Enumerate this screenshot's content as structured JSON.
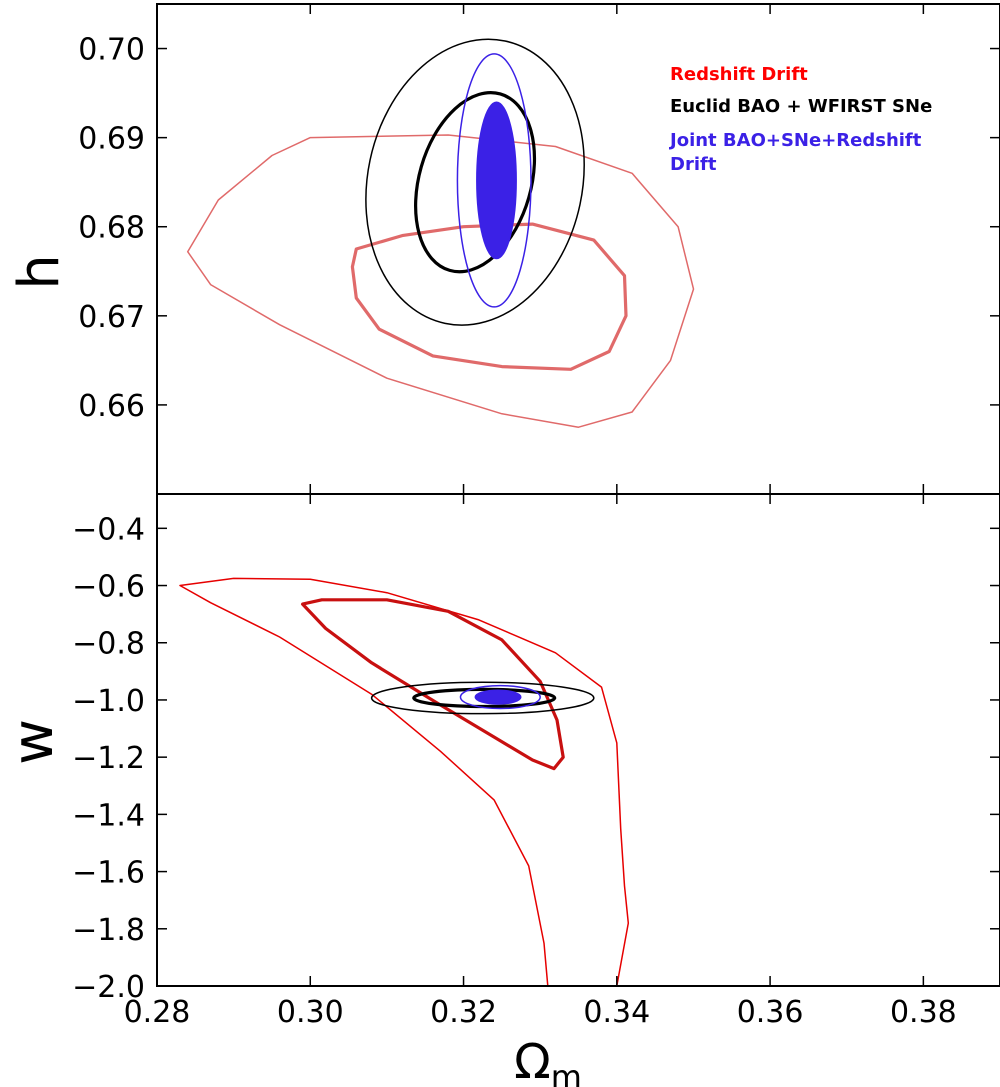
{
  "chart_data": [
    {
      "type": "contour",
      "panel": "top",
      "ylabel": "h",
      "xlim": [
        0.28,
        0.39
      ],
      "ylim": [
        0.65,
        0.705
      ],
      "xticks": [
        0.28,
        0.3,
        0.32,
        0.34,
        0.36,
        0.38
      ],
      "yticks": [
        "0.70",
        "0.69",
        "0.68",
        "0.67",
        "0.66"
      ],
      "legend": {
        "placement": "top-right",
        "entries": [
          {
            "label": "Redshift Drift",
            "color": "#ff0000"
          },
          {
            "label": "Euclid BAO + WFIRST SNe",
            "color": "#000000"
          },
          {
            "label": "Joint BAO+SNe+Redshift Drift",
            "color": "#3b21e6"
          }
        ]
      },
      "series": [
        {
          "name": "Redshift Drift",
          "color": "#e06a6a",
          "level": "outer",
          "points": [
            [
              0.3,
              0.69
            ],
            [
              0.318,
              0.6903
            ],
            [
              0.332,
              0.689
            ],
            [
              0.342,
              0.686
            ],
            [
              0.348,
              0.68
            ],
            [
              0.35,
              0.673
            ],
            [
              0.347,
              0.665
            ],
            [
              0.342,
              0.6592
            ],
            [
              0.335,
              0.6575
            ],
            [
              0.325,
              0.659
            ],
            [
              0.31,
              0.663
            ],
            [
              0.296,
              0.669
            ],
            [
              0.287,
              0.6735
            ],
            [
              0.284,
              0.6772
            ],
            [
              0.288,
              0.683
            ],
            [
              0.295,
              0.688
            ]
          ]
        },
        {
          "name": "Redshift Drift",
          "color": "#e06a6a",
          "level": "inner",
          "points": [
            [
              0.306,
              0.6775
            ],
            [
              0.312,
              0.679
            ],
            [
              0.32,
              0.68
            ],
            [
              0.329,
              0.6803
            ],
            [
              0.337,
              0.6785
            ],
            [
              0.341,
              0.6745
            ],
            [
              0.3412,
              0.67
            ],
            [
              0.339,
              0.666
            ],
            [
              0.334,
              0.664
            ],
            [
              0.325,
              0.6643
            ],
            [
              0.316,
              0.6655
            ],
            [
              0.309,
              0.6685
            ],
            [
              0.306,
              0.672
            ],
            [
              0.3055,
              0.6755
            ]
          ]
        },
        {
          "name": "Euclid BAO + WFIRST SNe",
          "color": "#000000",
          "level": "outer",
          "ellipse": {
            "cx": 0.3215,
            "cy": 0.685,
            "rx": 0.014,
            "ry": 0.0162,
            "rot_deg": 12
          }
        },
        {
          "name": "Euclid BAO + WFIRST SNe",
          "color": "#000000",
          "level": "inner",
          "ellipse": {
            "cx": 0.3215,
            "cy": 0.685,
            "rx": 0.0073,
            "ry": 0.0103,
            "rot_deg": 16
          }
        },
        {
          "name": "Joint BAO+SNe+Redshift Drift",
          "color": "#3b21e6",
          "level": "outer",
          "ellipse": {
            "cx": 0.324,
            "cy": 0.6852,
            "rx": 0.0048,
            "ry": 0.0142,
            "rot_deg": 0
          }
        },
        {
          "name": "Joint BAO+SNe+Redshift Drift",
          "color": "#3b21e6",
          "level": "inner",
          "filled": true,
          "ellipse": {
            "cx": 0.3243,
            "cy": 0.6852,
            "rx": 0.0026,
            "ry": 0.0088,
            "rot_deg": 0
          }
        }
      ]
    },
    {
      "type": "contour",
      "panel": "bottom",
      "xlabel": "Ω",
      "xlabel_sub": "m",
      "ylabel": "w",
      "xlim": [
        0.28,
        0.39
      ],
      "ylim": [
        -2.0,
        -0.28
      ],
      "xticks": [
        "0.28",
        "0.30",
        "0.32",
        "0.34",
        "0.36",
        "0.38"
      ],
      "yticks": [
        "−0.4",
        "−0.6",
        "−0.8",
        "−1.0",
        "−1.2",
        "−1.4",
        "−1.6",
        "−1.8",
        "−2.0"
      ],
      "series": [
        {
          "name": "Redshift Drift",
          "color": "#e60000",
          "level": "outer",
          "points": [
            [
              0.331,
              -2.0
            ],
            [
              0.3305,
              -1.85
            ],
            [
              0.3285,
              -1.58
            ],
            [
              0.324,
              -1.35
            ],
            [
              0.317,
              -1.18
            ],
            [
              0.308,
              -0.98
            ],
            [
              0.296,
              -0.78
            ],
            [
              0.287,
              -0.66
            ],
            [
              0.283,
              -0.6
            ],
            [
              0.29,
              -0.575
            ],
            [
              0.3,
              -0.578
            ],
            [
              0.31,
              -0.625
            ],
            [
              0.322,
              -0.72
            ],
            [
              0.332,
              -0.835
            ],
            [
              0.338,
              -0.955
            ],
            [
              0.34,
              -1.15
            ],
            [
              0.3405,
              -1.45
            ],
            [
              0.341,
              -1.65
            ],
            [
              0.3415,
              -1.78
            ],
            [
              0.34,
              -2.0
            ]
          ]
        },
        {
          "name": "Redshift Drift",
          "color": "#c81010",
          "level": "inner",
          "points": [
            [
              0.299,
              -0.665
            ],
            [
              0.3015,
              -0.65
            ],
            [
              0.31,
              -0.65
            ],
            [
              0.318,
              -0.69
            ],
            [
              0.325,
              -0.79
            ],
            [
              0.33,
              -0.935
            ],
            [
              0.3322,
              -1.07
            ],
            [
              0.333,
              -1.2
            ],
            [
              0.3318,
              -1.24
            ],
            [
              0.329,
              -1.21
            ],
            [
              0.324,
              -1.13
            ],
            [
              0.3165,
              -1.01
            ],
            [
              0.308,
              -0.87
            ],
            [
              0.302,
              -0.75
            ]
          ]
        },
        {
          "name": "Euclid BAO + WFIRST SNe",
          "color": "#000000",
          "level": "outer",
          "ellipse": {
            "cx": 0.3225,
            "cy": -0.993,
            "rx": 0.0145,
            "ry": 0.055,
            "rot_deg": 0
          }
        },
        {
          "name": "Euclid BAO + WFIRST SNe",
          "color": "#000000",
          "level": "inner",
          "ellipse": {
            "cx": 0.3227,
            "cy": -0.993,
            "rx": 0.0092,
            "ry": 0.03,
            "rot_deg": 0
          }
        },
        {
          "name": "Joint BAO+SNe+Redshift Drift",
          "color": "#3b21e6",
          "level": "outer",
          "ellipse": {
            "cx": 0.3248,
            "cy": -0.99,
            "rx": 0.0052,
            "ry": 0.04,
            "rot_deg": 0
          }
        },
        {
          "name": "Joint BAO+SNe+Redshift Drift",
          "color": "#3b21e6",
          "level": "inner",
          "filled": true,
          "ellipse": {
            "cx": 0.3245,
            "cy": -0.99,
            "rx": 0.003,
            "ry": 0.025,
            "rot_deg": 0
          }
        }
      ]
    }
  ]
}
